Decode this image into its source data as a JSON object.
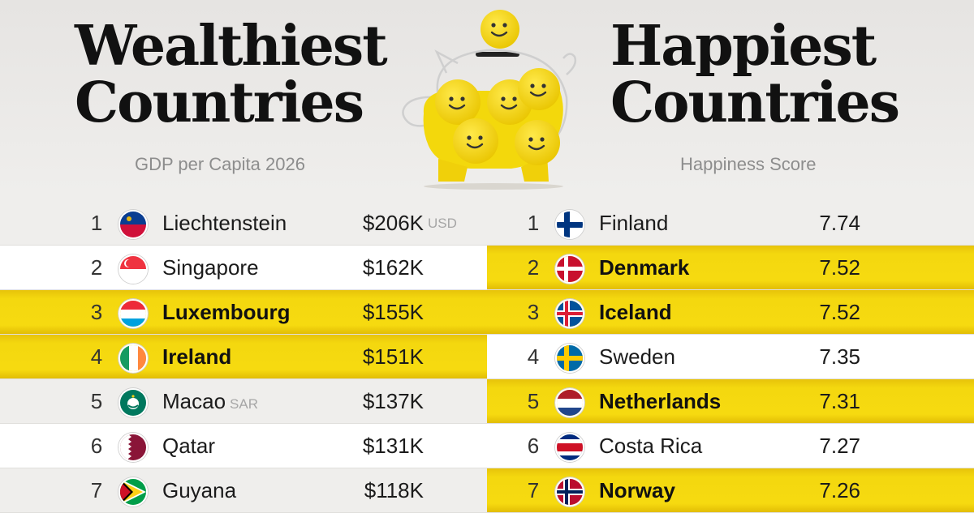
{
  "wealthiest": {
    "title_line1": "Wealthiest",
    "title_line2": "Countries",
    "subtitle": "GDP per Capita 2026"
  },
  "happiest": {
    "title_line1": "Happiest",
    "title_line2": "Countries",
    "subtitle": "Happiness Score"
  },
  "chart_data": [
    {
      "type": "table",
      "title": "Wealthiest Countries",
      "subtitle": "GDP per Capita 2026",
      "rows": [
        {
          "rank": "1",
          "country": "Liechtenstein",
          "suffix": "",
          "display": "$206K",
          "unit": "USD",
          "value": 206,
          "flag": "liechtenstein-flag",
          "style": "grey"
        },
        {
          "rank": "2",
          "country": "Singapore",
          "suffix": "",
          "display": "$162K",
          "unit": "",
          "value": 162,
          "flag": "singapore-flag",
          "style": "white"
        },
        {
          "rank": "3",
          "country": "Luxembourg",
          "suffix": "",
          "display": "$155K",
          "unit": "",
          "value": 155,
          "flag": "luxembourg-flag",
          "style": "hl"
        },
        {
          "rank": "4",
          "country": "Ireland",
          "suffix": "",
          "display": "$151K",
          "unit": "",
          "value": 151,
          "flag": "ireland-flag",
          "style": "hl"
        },
        {
          "rank": "5",
          "country": "Macao",
          "suffix": "SAR",
          "display": "$137K",
          "unit": "",
          "value": 137,
          "flag": "macao-flag",
          "style": "grey"
        },
        {
          "rank": "6",
          "country": "Qatar",
          "suffix": "",
          "display": "$131K",
          "unit": "",
          "value": 131,
          "flag": "qatar-flag",
          "style": "white"
        },
        {
          "rank": "7",
          "country": "Guyana",
          "suffix": "",
          "display": "$118K",
          "unit": "",
          "value": 118,
          "flag": "guyana-flag",
          "style": "grey"
        }
      ]
    },
    {
      "type": "table",
      "title": "Happiest Countries",
      "subtitle": "Happiness Score",
      "rows": [
        {
          "rank": "1",
          "country": "Finland",
          "suffix": "",
          "display": "7.74",
          "unit": "",
          "value": 7.74,
          "flag": "finland-flag",
          "style": "grey"
        },
        {
          "rank": "2",
          "country": "Denmark",
          "suffix": "",
          "display": "7.52",
          "unit": "",
          "value": 7.52,
          "flag": "denmark-flag",
          "style": "hl"
        },
        {
          "rank": "3",
          "country": "Iceland",
          "suffix": "",
          "display": "7.52",
          "unit": "",
          "value": 7.52,
          "flag": "iceland-flag",
          "style": "hl"
        },
        {
          "rank": "4",
          "country": "Sweden",
          "suffix": "",
          "display": "7.35",
          "unit": "",
          "value": 7.35,
          "flag": "sweden-flag",
          "style": "white"
        },
        {
          "rank": "5",
          "country": "Netherlands",
          "suffix": "",
          "display": "7.31",
          "unit": "",
          "value": 7.31,
          "flag": "netherlands-flag",
          "style": "hl"
        },
        {
          "rank": "6",
          "country": "Costa Rica",
          "suffix": "",
          "display": "7.27",
          "unit": "",
          "value": 7.27,
          "flag": "costa-rica-flag",
          "style": "white"
        },
        {
          "rank": "7",
          "country": "Norway",
          "suffix": "",
          "display": "7.26",
          "unit": "",
          "value": 7.26,
          "flag": "norway-flag",
          "style": "hl"
        }
      ]
    }
  ],
  "colors": {
    "highlight": "#f6da10",
    "coin": "#f3d80c",
    "text": "#111111"
  }
}
